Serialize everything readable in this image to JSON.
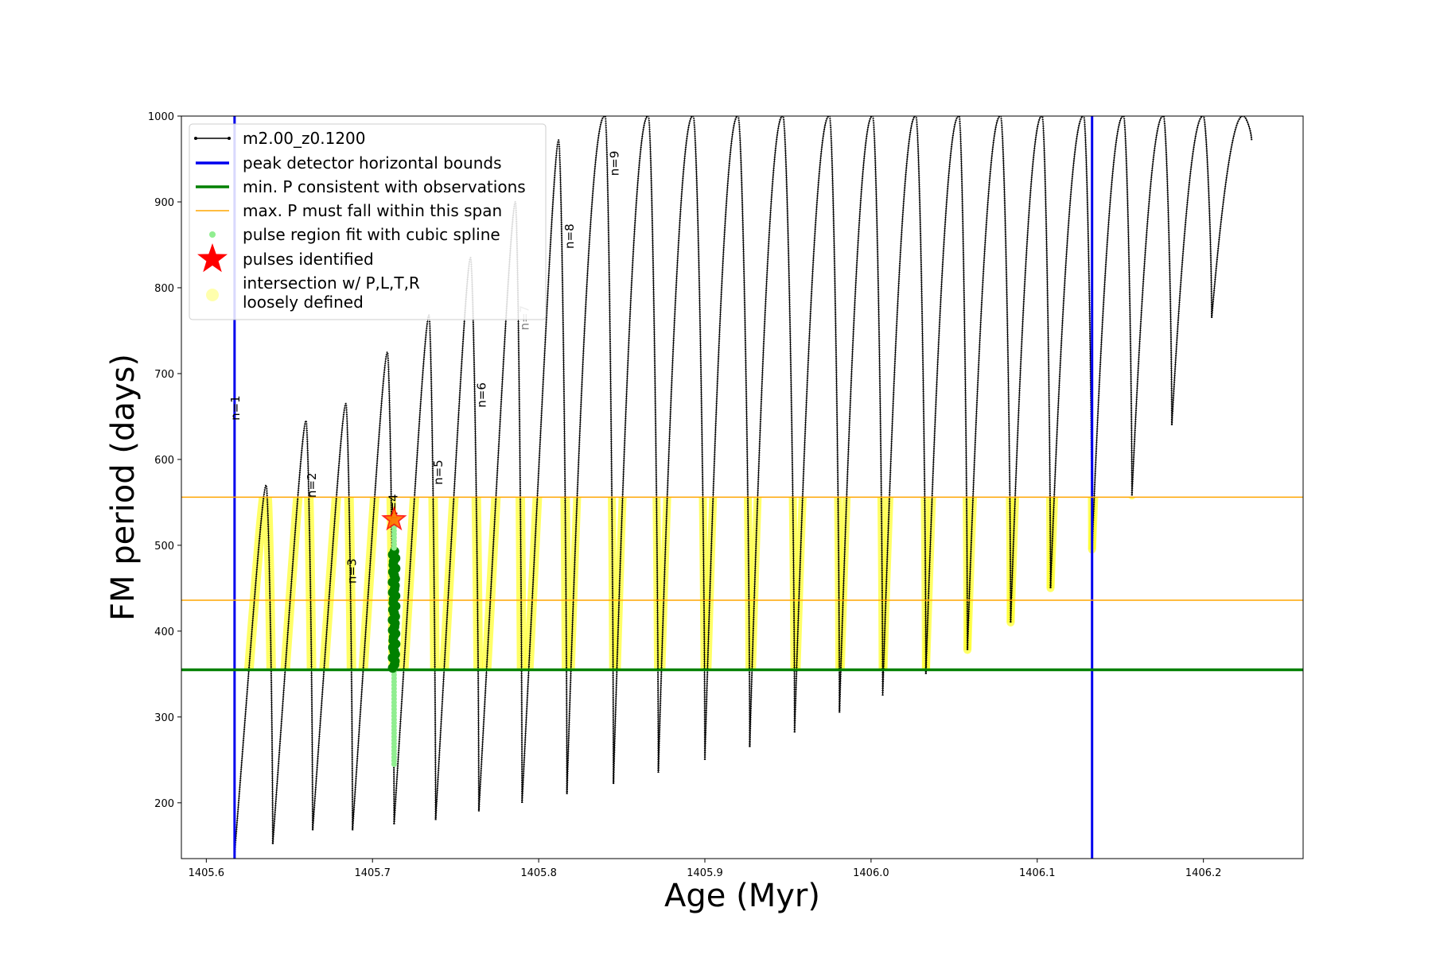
{
  "chart_data": {
    "type": "line",
    "xlabel": "Age (Myr)",
    "ylabel": "FM period (days)",
    "xlim": [
      1405.585,
      1406.26
    ],
    "ylim": [
      135,
      1000
    ],
    "xticks": [
      1405.6,
      1405.7,
      1405.8,
      1405.9,
      1406.0,
      1406.1,
      1406.2
    ],
    "xtick_labels": [
      "1405.6",
      "1405.7",
      "1405.8",
      "1405.9",
      "1406.0",
      "1406.1",
      "1406.2"
    ],
    "yticks": [
      200,
      300,
      400,
      500,
      600,
      700,
      800,
      900,
      1000
    ],
    "ytick_labels": [
      "200",
      "300",
      "400",
      "500",
      "600",
      "700",
      "800",
      "900",
      "1000"
    ],
    "grid": false,
    "legend_position": "top-left",
    "legend": [
      {
        "label": "m2.00_z0.1200",
        "kind": "line-marker",
        "color": "#000000"
      },
      {
        "label": "peak detector horizontal bounds",
        "kind": "line",
        "color": "#0000ee"
      },
      {
        "label": "min. P consistent with observations",
        "kind": "line",
        "color": "#008000"
      },
      {
        "label": "max. P must fall within this span",
        "kind": "line",
        "color": "#ffa500"
      },
      {
        "label": "pulse region fit with cubic spline",
        "kind": "dot",
        "color": "#90ee90"
      },
      {
        "label": "pulses identified",
        "kind": "star",
        "color": "#ff0000"
      },
      {
        "label": "intersection w/ P,L,T,R",
        "kind": "circle",
        "color": "#ffff99"
      },
      {
        "label": "loosely defined",
        "kind": "none",
        "color": "#ffff99"
      }
    ],
    "series": [
      {
        "name": "m2.00_z0.1200",
        "color": "#000000",
        "pulses": [
          {
            "x0": 1405.617,
            "x_peak": 1405.636,
            "x_end": 1405.64,
            "min": 140,
            "peak": 570,
            "end": 152
          },
          {
            "x0": 1405.64,
            "x_peak": 1405.66,
            "x_end": 1405.664,
            "min": 152,
            "peak": 645,
            "end": 168
          },
          {
            "x0": 1405.664,
            "x_peak": 1405.684,
            "x_end": 1405.688,
            "min": 168,
            "peak": 665,
            "end": 168
          },
          {
            "x0": 1405.688,
            "x_peak": 1405.709,
            "x_end": 1405.713,
            "min": 168,
            "peak": 725,
            "end": 175
          },
          {
            "x0": 1405.713,
            "x_peak": 1405.734,
            "x_end": 1405.738,
            "min": 175,
            "peak": 768,
            "end": 180
          },
          {
            "x0": 1405.738,
            "x_peak": 1405.759,
            "x_end": 1405.764,
            "min": 180,
            "peak": 835,
            "end": 190
          },
          {
            "x0": 1405.764,
            "x_peak": 1405.786,
            "x_end": 1405.79,
            "min": 190,
            "peak": 900,
            "end": 200
          },
          {
            "x0": 1405.79,
            "x_peak": 1405.812,
            "x_end": 1405.817,
            "min": 200,
            "peak": 972,
            "end": 210
          },
          {
            "x0": 1405.817,
            "x_peak": 1405.84,
            "x_end": 1405.845,
            "min": 210,
            "peak": 1000,
            "end": 222
          },
          {
            "x0": 1405.845,
            "x_peak": 1405.866,
            "x_end": 1405.872,
            "min": 222,
            "peak": 1000,
            "end": 235
          },
          {
            "x0": 1405.872,
            "x_peak": 1405.893,
            "x_end": 1405.9,
            "min": 235,
            "peak": 1000,
            "end": 250
          },
          {
            "x0": 1405.9,
            "x_peak": 1405.92,
            "x_end": 1405.927,
            "min": 250,
            "peak": 1000,
            "end": 265
          },
          {
            "x0": 1405.927,
            "x_peak": 1405.947,
            "x_end": 1405.954,
            "min": 265,
            "peak": 1000,
            "end": 282
          },
          {
            "x0": 1405.954,
            "x_peak": 1405.975,
            "x_end": 1405.981,
            "min": 282,
            "peak": 1000,
            "end": 305
          },
          {
            "x0": 1405.981,
            "x_peak": 1406.001,
            "x_end": 1406.007,
            "min": 305,
            "peak": 1000,
            "end": 325
          },
          {
            "x0": 1406.007,
            "x_peak": 1406.027,
            "x_end": 1406.033,
            "min": 325,
            "peak": 1000,
            "end": 350
          },
          {
            "x0": 1406.033,
            "x_peak": 1406.053,
            "x_end": 1406.058,
            "min": 350,
            "peak": 1000,
            "end": 378
          },
          {
            "x0": 1406.058,
            "x_peak": 1406.078,
            "x_end": 1406.084,
            "min": 378,
            "peak": 1000,
            "end": 410
          },
          {
            "x0": 1406.084,
            "x_peak": 1406.103,
            "x_end": 1406.108,
            "min": 410,
            "peak": 1000,
            "end": 450
          },
          {
            "x0": 1406.108,
            "x_peak": 1406.128,
            "x_end": 1406.133,
            "min": 450,
            "peak": 1000,
            "end": 495
          },
          {
            "x0": 1406.133,
            "x_peak": 1406.152,
            "x_end": 1406.157,
            "min": 495,
            "peak": 1000,
            "end": 558
          },
          {
            "x0": 1406.157,
            "x_peak": 1406.176,
            "x_end": 1406.181,
            "min": 558,
            "peak": 1000,
            "end": 640
          },
          {
            "x0": 1406.181,
            "x_peak": 1406.2,
            "x_end": 1406.205,
            "min": 640,
            "peak": 1000,
            "end": 765
          },
          {
            "x0": 1406.205,
            "x_peak": 1406.224,
            "x_end": 1406.229,
            "min": 765,
            "peak": 1000,
            "end": 972
          }
        ]
      },
      {
        "name": "peak detector horizontal bounds",
        "type": "vline",
        "color": "#0000ee",
        "x": [
          1405.617,
          1406.133
        ]
      },
      {
        "name": "min. P consistent with observations",
        "type": "hline",
        "color": "#008000",
        "y": 355
      },
      {
        "name": "max. P must fall within this span",
        "type": "hline",
        "color": "#ffa500",
        "y": [
          436,
          556
        ]
      },
      {
        "name": "pulse region fit with cubic spline",
        "color": "#90ee90",
        "x": 1405.713,
        "y_range": [
          245,
          530
        ],
        "dense_color": "#008000",
        "dense_y_range": [
          355,
          495
        ]
      },
      {
        "name": "pulses identified",
        "color": "#ff0000",
        "x": [
          1405.713
        ],
        "y": [
          530
        ]
      },
      {
        "name": "intersection w/ P,L,T,R",
        "color": "#ffff00",
        "y_range": [
          355,
          556
        ]
      }
    ],
    "annotations": [
      {
        "text": "n=1",
        "x": 1405.62,
        "y": 660
      },
      {
        "text": "n=2",
        "x": 1405.666,
        "y": 570
      },
      {
        "text": "n=3",
        "x": 1405.69,
        "y": 470
      },
      {
        "text": "n=4",
        "x": 1405.715,
        "y": 545
      },
      {
        "text": "n=5",
        "x": 1405.742,
        "y": 585
      },
      {
        "text": "n=6",
        "x": 1405.768,
        "y": 675
      },
      {
        "text": "n=7",
        "x": 1405.794,
        "y": 765
      },
      {
        "text": "n=8",
        "x": 1405.821,
        "y": 860
      },
      {
        "text": "n=9",
        "x": 1405.848,
        "y": 945
      }
    ]
  }
}
